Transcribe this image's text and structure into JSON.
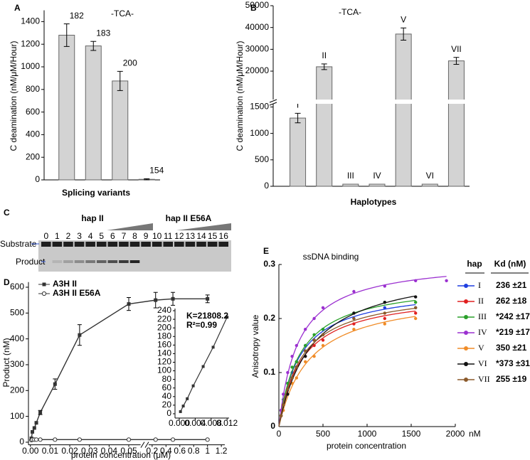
{
  "chart_data": [
    {
      "type": "bar",
      "label": "A",
      "title": "-TCA-",
      "ylabel": "C deamination (nM/μM/Hour)",
      "xlabel": "Splicing variants",
      "categories": [
        "182",
        "183",
        "200",
        "154"
      ],
      "values": [
        1280,
        1185,
        875,
        5
      ],
      "errors": [
        100,
        40,
        85,
        5
      ],
      "color": "#d3d3d3",
      "ylim": [
        0,
        1500
      ],
      "yticks": [
        0,
        200,
        400,
        600,
        800,
        1000,
        1200,
        1400
      ]
    },
    {
      "type": "bar",
      "label": "B",
      "title": "-TCA-",
      "ylabel": "C deamination (nM/μM/Hour)",
      "xlabel": "Haplotypes",
      "categories": [
        "I",
        "II",
        "III",
        "IV",
        "V",
        "VI",
        "VII"
      ],
      "values": [
        1290,
        22000,
        40,
        40,
        37000,
        40,
        24700
      ],
      "errors": [
        90,
        1300,
        null,
        null,
        2800,
        null,
        1600
      ],
      "color": "#d3d3d3",
      "segments": [
        {
          "ylim": [
            0,
            1600
          ],
          "yticks": [
            0,
            500,
            1000,
            1500
          ]
        },
        {
          "ylim": [
            6000,
            50000
          ],
          "yticks": [
            20000,
            30000,
            40000,
            50000
          ]
        }
      ]
    },
    {
      "type": "gel",
      "label": "C",
      "groups": [
        "hap II",
        "hap II E56A"
      ],
      "lanes": [
        "0",
        "1",
        "2",
        "3",
        "4",
        "5",
        "6",
        "7",
        "8",
        "9",
        "10",
        "11",
        "12",
        "13",
        "14",
        "15",
        "16"
      ],
      "bands": [
        "Substrate",
        "Product"
      ]
    },
    {
      "type": "line",
      "label": "D",
      "ylabel": "Product (nM)",
      "xlabel": "protein concentration (μM)",
      "x": [
        0.0005,
        0.001,
        0.002,
        0.003,
        0.005,
        0.0125,
        0.025,
        0.05,
        0.25,
        0.5,
        1
      ],
      "series": [
        {
          "name": "A3H II",
          "color": "#333333",
          "marker": "square",
          "values": [
            15,
            40,
            55,
            75,
            115,
            225,
            415,
            535,
            550,
            555,
            555
          ],
          "errors": [
            null,
            null,
            null,
            null,
            8,
            20,
            40,
            25,
            30,
            25,
            15
          ]
        },
        {
          "name": "A3H II E56A",
          "color": "#333333",
          "marker": "circle",
          "values": [
            8,
            10,
            10,
            10,
            10,
            10,
            10,
            10,
            10,
            10,
            10
          ]
        }
      ],
      "ylim": [
        -10,
        620
      ],
      "yticks": [
        0,
        100,
        200,
        300,
        400,
        500,
        600
      ],
      "xsegments": [
        {
          "xlim": [
            -0.001,
            0.056
          ],
          "xticks": [
            {
              "value": 0,
              "label": "0.00"
            },
            0.01,
            0.02,
            0.03,
            0.04,
            0.05
          ]
        },
        {
          "xlim": [
            0.15,
            1.25
          ],
          "xticks": [
            0.2,
            0.4,
            0.6,
            0.8,
            1,
            1.2
          ]
        }
      ],
      "inset": {
        "x": [
          0.0003,
          0.001,
          0.002,
          0.0035,
          0.006,
          0.0085,
          0.012
        ],
        "values": [
          5,
          18,
          35,
          65,
          110,
          155,
          225
        ],
        "color": "#333333",
        "xlim": [
          -0.00107,
          0.0125
        ],
        "xticks": [
          {
            "value": 0,
            "label": "0.000"
          },
          0.004,
          0.008,
          0.012
        ],
        "ylim": [
          -10,
          245
        ],
        "yticks": [
          0,
          20,
          40,
          60,
          80,
          100,
          120,
          140,
          160,
          180,
          200,
          220,
          240
        ],
        "annotations": [
          "K=21808.2",
          "R²=0.99"
        ]
      }
    },
    {
      "type": "scatter",
      "label": "E",
      "title": "ssDNA binding",
      "ylabel": "Anisotropy value",
      "xlabel": "protein concentration",
      "x_unit": "nM",
      "xlim": [
        0,
        2000
      ],
      "xticks": [
        0,
        500,
        1000,
        1500,
        2000
      ],
      "ylim": [
        0,
        0.3
      ],
      "yticks": [
        0,
        0.1,
        0.2,
        0.3
      ],
      "x": [
        25,
        50,
        100,
        150,
        200,
        300,
        400,
        500,
        850,
        1200,
        1550,
        1900
      ],
      "legend_headers": [
        "hap",
        "Kd (nM)"
      ],
      "series": [
        {
          "name": "I",
          "color": "#1f3fe0",
          "kd": 236,
          "kd_label": "236 ±21",
          "bmax": 0.26,
          "values": [
            0.03,
            0.05,
            0.08,
            0.1,
            0.12,
            0.15,
            0.16,
            0.18,
            0.2,
            0.22,
            0.22,
            null
          ]
        },
        {
          "name": "II",
          "color": "#e02020",
          "kd": 262,
          "kd_label": "262 ±18",
          "bmax": 0.25,
          "values": [
            0.02,
            0.04,
            0.07,
            0.09,
            0.11,
            0.13,
            0.15,
            0.16,
            0.19,
            0.2,
            0.21,
            null
          ]
        },
        {
          "name": "III",
          "color": "#2aa02a",
          "kd": 242,
          "kd_label": "*242 ±17",
          "bmax": 0.27,
          "values": [
            0.03,
            0.05,
            0.08,
            0.11,
            0.12,
            0.15,
            0.17,
            0.18,
            0.21,
            0.23,
            0.23,
            null
          ]
        },
        {
          "name": "IV",
          "color": "#9b30d0",
          "kd": 219,
          "kd_label": "*219 ±17",
          "bmax": 0.31,
          "values": [
            0.03,
            0.06,
            0.1,
            0.13,
            0.15,
            0.18,
            0.2,
            0.22,
            0.25,
            0.26,
            0.27,
            0.27
          ]
        },
        {
          "name": "V",
          "color": "#f08c28",
          "kd": 350,
          "kd_label": "350 ±21",
          "bmax": 0.25,
          "values": [
            0.02,
            0.03,
            0.06,
            0.08,
            0.09,
            0.12,
            0.13,
            0.15,
            0.18,
            0.19,
            0.2,
            null
          ]
        },
        {
          "name": "VI",
          "color": "#111111",
          "kd": 373,
          "kd_label": "*373 ±31",
          "bmax": 0.3,
          "values": [
            0.02,
            0.04,
            0.06,
            0.09,
            0.11,
            0.13,
            0.16,
            0.17,
            0.21,
            0.23,
            0.24,
            null
          ]
        },
        {
          "name": "VII",
          "color": "#8b5a2b",
          "kd": 255,
          "kd_label": "255 ±19",
          "bmax": 0.255,
          "values": [
            0.02,
            0.04,
            0.07,
            0.09,
            0.11,
            0.14,
            0.16,
            0.17,
            0.2,
            0.21,
            0.22,
            null
          ]
        }
      ]
    }
  ]
}
